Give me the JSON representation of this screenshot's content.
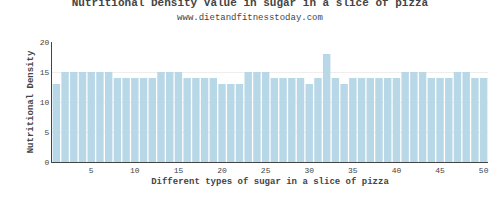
{
  "chart_data": {
    "type": "bar",
    "title": "Nutritional Density Value in sugar in a slice of pizza",
    "subtitle": "www.dietandfitnesstoday.com",
    "xlabel": "Different types of sugar in a slice of pizza",
    "ylabel": "Nutritional Density",
    "x": [
      1,
      2,
      3,
      4,
      5,
      6,
      7,
      8,
      9,
      10,
      11,
      12,
      13,
      14,
      15,
      16,
      17,
      18,
      19,
      20,
      21,
      22,
      23,
      24,
      25,
      26,
      27,
      28,
      29,
      30,
      31,
      32,
      33,
      34,
      35,
      36,
      37,
      38,
      39,
      40,
      41,
      42,
      43,
      44,
      45,
      46,
      47,
      48,
      49,
      50
    ],
    "values": [
      13,
      15,
      15,
      15,
      15,
      15,
      15,
      14,
      14,
      14,
      14,
      14,
      15,
      15,
      15,
      14,
      14,
      14,
      14,
      13,
      13,
      13,
      15,
      15,
      15,
      14,
      14,
      14,
      14,
      13,
      14,
      18,
      14,
      13,
      14,
      14,
      14,
      14,
      14,
      14,
      15,
      15,
      15,
      14,
      14,
      14,
      15,
      15,
      14,
      14
    ],
    "color": "#b8d8e8",
    "xlim": [
      0.5,
      50.5
    ],
    "xticks": [
      5,
      10,
      15,
      20,
      25,
      30,
      35,
      40,
      45,
      50
    ],
    "ylim": [
      0,
      20
    ],
    "yticks": [
      0,
      5,
      10,
      15,
      20
    ],
    "grid": true
  }
}
